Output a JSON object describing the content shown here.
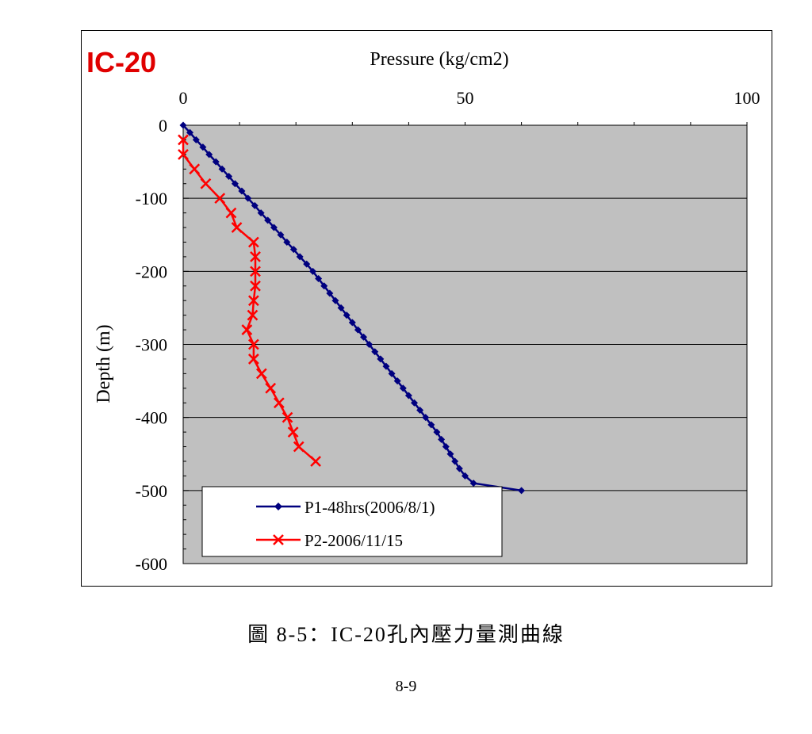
{
  "figure": {
    "caption": "圖 8-5：IC-20孔內壓力量測曲線",
    "page_number": "8-9"
  },
  "chart_data": {
    "type": "line",
    "tag": "IC-20",
    "xlabel": "Pressure (kg/cm2)",
    "ylabel": "Depth (m)",
    "xlim": [
      0,
      100
    ],
    "ylim": [
      -600,
      0
    ],
    "x_ticks": [
      0,
      50,
      100
    ],
    "y_ticks": [
      0,
      -100,
      -200,
      -300,
      -400,
      -500,
      -600
    ],
    "x_axis_position": "top",
    "grid": "horizontal",
    "legend_position": "bottom-left",
    "plot_background": "#c0c0c0",
    "series": [
      {
        "name": "P1-48hrs(2006/8/1)",
        "color": "#00007f",
        "marker": "diamond",
        "points": [
          [
            0,
            0
          ],
          [
            1.2,
            -10
          ],
          [
            2.3,
            -20
          ],
          [
            3.5,
            -30
          ],
          [
            4.6,
            -40
          ],
          [
            5.8,
            -50
          ],
          [
            6.9,
            -60
          ],
          [
            8.1,
            -70
          ],
          [
            9.2,
            -80
          ],
          [
            10.4,
            -90
          ],
          [
            11.5,
            -100
          ],
          [
            12.7,
            -110
          ],
          [
            13.8,
            -120
          ],
          [
            15.0,
            -130
          ],
          [
            16.1,
            -140
          ],
          [
            17.3,
            -150
          ],
          [
            18.4,
            -160
          ],
          [
            19.6,
            -170
          ],
          [
            20.7,
            -180
          ],
          [
            21.9,
            -190
          ],
          [
            23.0,
            -200
          ],
          [
            24.0,
            -210
          ],
          [
            25.0,
            -220
          ],
          [
            26.0,
            -230
          ],
          [
            27.0,
            -240
          ],
          [
            28.0,
            -250
          ],
          [
            29.0,
            -260
          ],
          [
            30.0,
            -270
          ],
          [
            31.0,
            -280
          ],
          [
            32.0,
            -290
          ],
          [
            33.0,
            -300
          ],
          [
            34.0,
            -310
          ],
          [
            35.0,
            -320
          ],
          [
            36.0,
            -330
          ],
          [
            37.0,
            -340
          ],
          [
            38.0,
            -350
          ],
          [
            39.0,
            -360
          ],
          [
            40.0,
            -370
          ],
          [
            41.0,
            -380
          ],
          [
            42.0,
            -390
          ],
          [
            43.0,
            -400
          ],
          [
            44.0,
            -410
          ],
          [
            45.0,
            -420
          ],
          [
            45.8,
            -430
          ],
          [
            46.6,
            -440
          ],
          [
            47.4,
            -450
          ],
          [
            48.2,
            -460
          ],
          [
            49.0,
            -470
          ],
          [
            50.0,
            -480
          ],
          [
            51.5,
            -490
          ],
          [
            60.0,
            -500
          ]
        ]
      },
      {
        "name": "P2-2006/11/15",
        "color": "#ff0000",
        "marker": "x",
        "points": [
          [
            0,
            -20
          ],
          [
            0,
            -40
          ],
          [
            2,
            -60
          ],
          [
            4,
            -80
          ],
          [
            6.5,
            -100
          ],
          [
            8.5,
            -120
          ],
          [
            9.5,
            -140
          ],
          [
            12.5,
            -160
          ],
          [
            12.8,
            -180
          ],
          [
            12.8,
            -200
          ],
          [
            12.8,
            -220
          ],
          [
            12.5,
            -240
          ],
          [
            12.3,
            -260
          ],
          [
            11.3,
            -280
          ],
          [
            12.5,
            -300
          ],
          [
            12.5,
            -320
          ],
          [
            13.9,
            -340
          ],
          [
            15.5,
            -360
          ],
          [
            17.0,
            -380
          ],
          [
            18.5,
            -400
          ],
          [
            19.5,
            -420
          ],
          [
            20.5,
            -440
          ],
          [
            23.5,
            -460
          ]
        ]
      }
    ]
  }
}
